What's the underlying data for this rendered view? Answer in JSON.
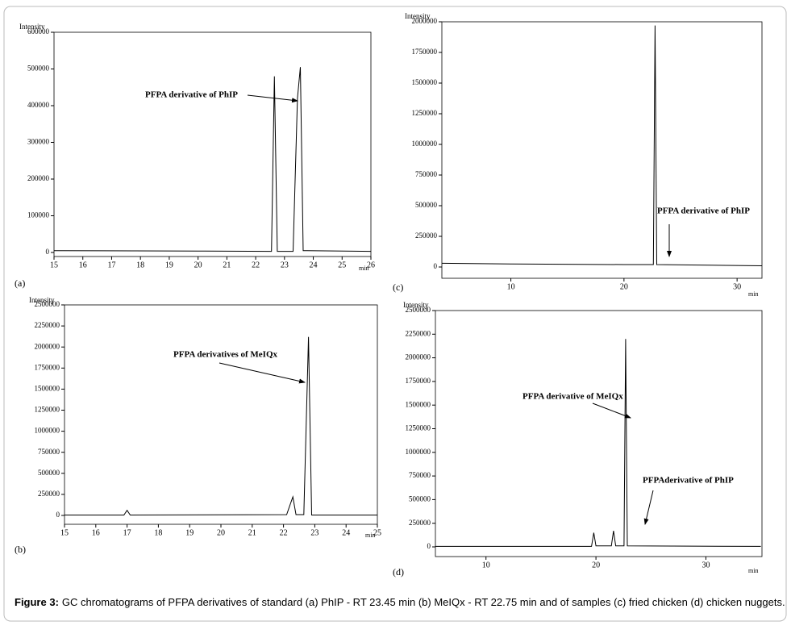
{
  "chart_data": [
    {
      "type": "line",
      "label": "(a)",
      "ylabel": "Intensity",
      "xlabel": "min",
      "color": "#000000",
      "x": [
        15,
        20,
        22.55,
        22.65,
        22.75,
        23.3,
        23.45,
        23.55,
        23.65,
        26
      ],
      "values": [
        5000,
        4000,
        3000,
        480000,
        3000,
        3000,
        420000,
        505000,
        5000,
        3000
      ],
      "xlim": [
        15,
        26
      ],
      "xticks": [
        15,
        16,
        17,
        18,
        19,
        20,
        21,
        22,
        23,
        24,
        25,
        26
      ],
      "ylim": [
        0,
        600000
      ],
      "yticks": [
        0,
        100000,
        200000,
        300000,
        400000,
        500000,
        600000
      ],
      "annotations": [
        "PFPA derivative of PhIP"
      ]
    },
    {
      "type": "line",
      "label": "(b)",
      "ylabel": "Intensity",
      "xlabel": "min",
      "color": "#000000",
      "x": [
        15,
        16.9,
        17.0,
        17.1,
        22.1,
        22.3,
        22.4,
        22.65,
        22.8,
        22.9,
        25
      ],
      "values": [
        5000,
        5000,
        60000,
        5000,
        10000,
        220000,
        10000,
        10000,
        2120000,
        5000,
        5000
      ],
      "xlim": [
        15,
        25
      ],
      "xticks": [
        15,
        16,
        17,
        18,
        19,
        20,
        21,
        22,
        23,
        24,
        25
      ],
      "ylim": [
        0,
        2500000
      ],
      "yticks": [
        0,
        250000,
        500000,
        750000,
        1000000,
        1250000,
        1500000,
        1750000,
        2000000,
        2250000,
        2500000
      ],
      "annotations": [
        "PFPA derivatives of MeIQx"
      ]
    },
    {
      "type": "line",
      "label": "(c)",
      "ylabel": "Intensity",
      "xlabel": "min",
      "color": "#000000",
      "x": [
        3.9,
        10,
        20,
        22.6,
        22.75,
        22.9,
        32.2
      ],
      "values": [
        30000,
        25000,
        20000,
        20000,
        1970000,
        20000,
        10000
      ],
      "xlim": [
        3.9,
        32.2
      ],
      "xticks": [
        10,
        20,
        30
      ],
      "ylim": [
        0,
        2000000
      ],
      "yticks": [
        0,
        250000,
        500000,
        750000,
        1000000,
        1250000,
        1500000,
        1750000,
        2000000
      ],
      "annotations": [
        "PFPA derivative of PhIP"
      ]
    },
    {
      "type": "line",
      "label": "(d)",
      "ylabel": "Intensity",
      "xlabel": "min",
      "color": "#000000",
      "x": [
        5.4,
        15,
        19.6,
        19.8,
        20,
        21.4,
        21.6,
        21.8,
        22.55,
        22.7,
        22.85,
        35
      ],
      "values": [
        5000,
        5000,
        5000,
        150000,
        10000,
        10000,
        170000,
        10000,
        10000,
        2200000,
        10000,
        5000
      ],
      "xlim": [
        5.4,
        35.1
      ],
      "xticks": [
        10,
        20,
        30
      ],
      "ylim": [
        0,
        2500000
      ],
      "yticks": [
        0,
        250000,
        500000,
        750000,
        1000000,
        1250000,
        1500000,
        1750000,
        2000000,
        2250000,
        2500000
      ],
      "annotations": [
        "PFPA derivative of MeIQx",
        "PFPAderivative of PhIP"
      ]
    }
  ],
  "caption": {
    "label": "Figure 3:",
    "text": "GC chromatograms of PFPA derivatives of standard (a) PhIP - RT 23.45 min (b) MeIQx - RT 22.75 min and of samples (c) fried chicken (d) chicken nuggets."
  }
}
